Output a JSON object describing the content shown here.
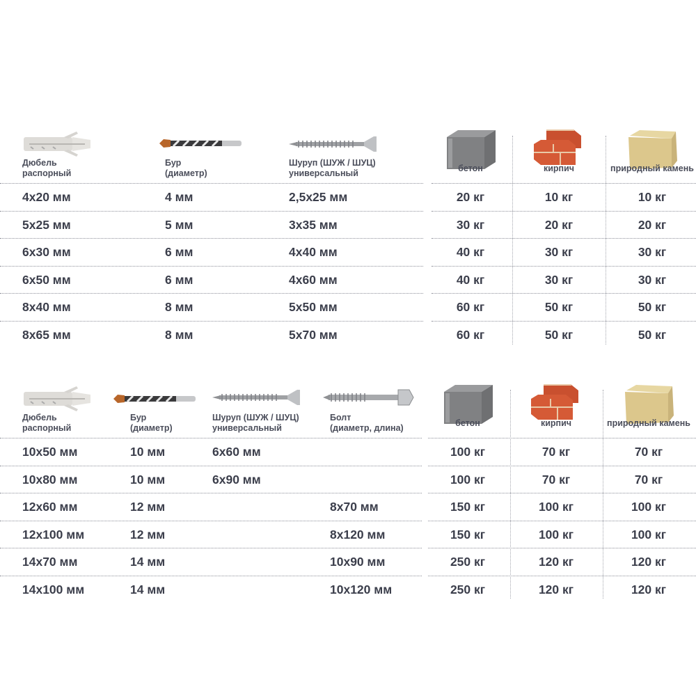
{
  "colors": {
    "text": "#3b3e4b",
    "divider": "#8d8f99"
  },
  "table1": {
    "headers": {
      "dowel": {
        "line1": "Дюбель",
        "line2": "распорный",
        "icon": "dowel-icon"
      },
      "drill": {
        "line1": "Бур",
        "line2": "(диаметр)",
        "icon": "drill-bit-icon"
      },
      "screw": {
        "line1": "Шуруп (ШУЖ / ШУЦ)",
        "line2": "универсальный",
        "icon": "screw-icon"
      },
      "concrete": {
        "label": "бетон",
        "icon": "concrete-block-icon"
      },
      "brick": {
        "label": "кирпич",
        "icon": "brick-icon"
      },
      "stone": {
        "label": "природный камень",
        "icon": "stone-icon"
      }
    },
    "rows": [
      {
        "dowel": "4х20 мм",
        "drill": "4 мм",
        "screw": "2,5х25 мм",
        "concrete": "20 кг",
        "brick": "10 кг",
        "stone": "10 кг"
      },
      {
        "dowel": "5х25 мм",
        "drill": "5 мм",
        "screw": "3х35 мм",
        "concrete": "30 кг",
        "brick": "20 кг",
        "stone": "20 кг"
      },
      {
        "dowel": "6х30 мм",
        "drill": "6 мм",
        "screw": "4х40 мм",
        "concrete": "40 кг",
        "brick": "30 кг",
        "stone": "30 кг"
      },
      {
        "dowel": "6х50 мм",
        "drill": "6 мм",
        "screw": "4х60 мм",
        "concrete": "40 кг",
        "brick": "30 кг",
        "stone": "30 кг"
      },
      {
        "dowel": "8х40 мм",
        "drill": "8 мм",
        "screw": "5х50 мм",
        "concrete": "60 кг",
        "brick": "50 кг",
        "stone": "50 кг"
      },
      {
        "dowel": "8х65 мм",
        "drill": "8 мм",
        "screw": "5х70 мм",
        "concrete": "60 кг",
        "brick": "50 кг",
        "stone": "50 кг"
      }
    ]
  },
  "table2": {
    "headers": {
      "dowel": {
        "line1": "Дюбель",
        "line2": "распорный",
        "icon": "dowel-icon"
      },
      "drill": {
        "line1": "Бур",
        "line2": "(диаметр)",
        "icon": "drill-bit-icon"
      },
      "screw": {
        "line1": "Шуруп (ШУЖ / ШУЦ)",
        "line2": "универсальный",
        "icon": "screw-icon"
      },
      "bolt": {
        "line1": "Болт",
        "line2": "(диаметр, длина)",
        "icon": "bolt-icon"
      },
      "concrete": {
        "label": "бетон",
        "icon": "concrete-block-icon"
      },
      "brick": {
        "label": "кирпич",
        "icon": "brick-icon"
      },
      "stone": {
        "label": "природный камень",
        "icon": "stone-icon"
      }
    },
    "rows": [
      {
        "dowel": "10х50 мм",
        "drill": "10 мм",
        "screw": "6х60 мм",
        "bolt": "",
        "concrete": "100 кг",
        "brick": "70 кг",
        "stone": "70 кг"
      },
      {
        "dowel": "10х80 мм",
        "drill": "10 мм",
        "screw": "6х90 мм",
        "bolt": "",
        "concrete": "100 кг",
        "brick": "70 кг",
        "stone": "70 кг"
      },
      {
        "dowel": "12х60 мм",
        "drill": "12 мм",
        "screw": "",
        "bolt": "8х70 мм",
        "concrete": "150 кг",
        "brick": "100 кг",
        "stone": "100 кг"
      },
      {
        "dowel": "12х100 мм",
        "drill": "12 мм",
        "screw": "",
        "bolt": "8х120 мм",
        "concrete": "150 кг",
        "brick": "100 кг",
        "stone": "100 кг"
      },
      {
        "dowel": "14х70 мм",
        "drill": "14 мм",
        "screw": "",
        "bolt": "10х90 мм",
        "concrete": "250 кг",
        "brick": "120 кг",
        "stone": "120 кг"
      },
      {
        "dowel": "14х100 мм",
        "drill": "14 мм",
        "screw": "",
        "bolt": "10х120 мм",
        "concrete": "250 кг",
        "brick": "120 кг",
        "stone": "120 кг"
      }
    ]
  }
}
